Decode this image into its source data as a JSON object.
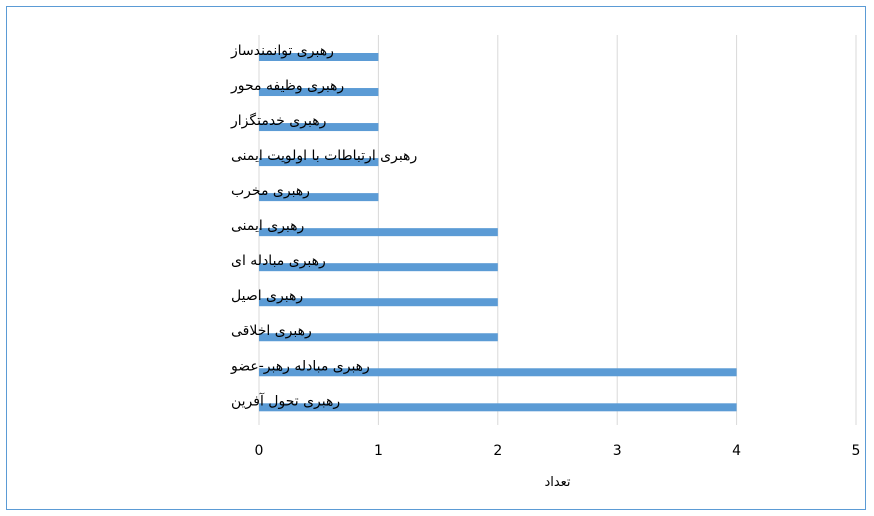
{
  "chart_data": {
    "type": "bar",
    "orientation": "horizontal",
    "categories": [
      "رهبری توانمندساز",
      "رهبری وظیفه محور",
      "رهبری خدمتگزار",
      "رهبری ارتباطات با اولویت ایمنی",
      "رهبری مخرب",
      "رهبری ایمنی",
      "رهبری مبادله ای",
      "رهبری اصیل",
      "رهبری اخلاقی",
      "رهبری مبادله رهبر-عضو",
      "رهبری تحول آفرین"
    ],
    "values": [
      1,
      1,
      1,
      1,
      1,
      2,
      2,
      2,
      2,
      4,
      4
    ],
    "xlabel": "تعداد",
    "ylabel": "",
    "xlim": [
      0,
      5
    ],
    "xticks": [
      "0",
      "1",
      "2",
      "3",
      "4",
      "5"
    ],
    "grid": true,
    "legend": "none",
    "bar_color": "#5b9bd5",
    "grid_color": "#d9d9d9",
    "frame_color": "#5b9bd5"
  }
}
